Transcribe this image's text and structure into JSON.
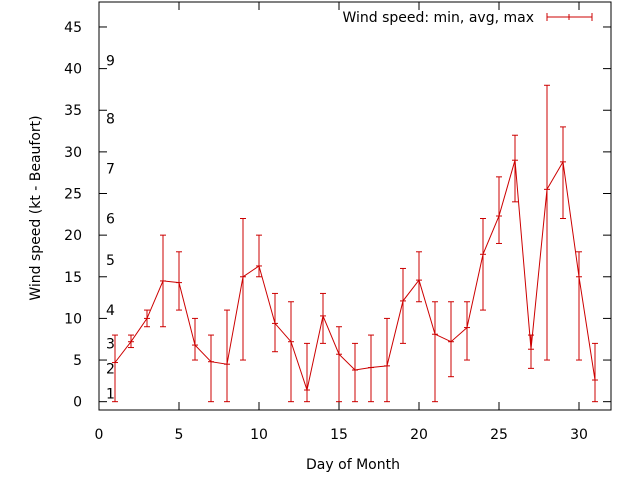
{
  "chart_data": {
    "type": "line",
    "xlabel": "Day of Month",
    "ylabel": "Wind speed (kt - Beaufort)",
    "xlim": [
      0,
      32
    ],
    "ylim": [
      -1,
      48
    ],
    "x_ticks": [
      0,
      5,
      10,
      15,
      20,
      25,
      30
    ],
    "y_ticks": [
      0,
      5,
      10,
      15,
      20,
      25,
      30,
      35,
      40,
      45
    ],
    "grid": false,
    "legend_position": "top-right",
    "beaufort_labels": [
      {
        "label": "1",
        "value": 1
      },
      {
        "label": "2",
        "value": 4
      },
      {
        "label": "3",
        "value": 7
      },
      {
        "label": "4",
        "value": 11
      },
      {
        "label": "5",
        "value": 17
      },
      {
        "label": "6",
        "value": 22
      },
      {
        "label": "7",
        "value": 28
      },
      {
        "label": "8",
        "value": 34
      },
      {
        "label": "9",
        "value": 41
      }
    ],
    "series": [
      {
        "name": "Wind speed: min, avg, max",
        "color": "#cc0000",
        "points": [
          {
            "x": 1,
            "avg": 4.7,
            "min": 0,
            "max": 8
          },
          {
            "x": 2,
            "avg": 7.2,
            "min": 6.5,
            "max": 8
          },
          {
            "x": 3,
            "avg": 10.0,
            "min": 9,
            "max": 11
          },
          {
            "x": 4,
            "avg": 14.5,
            "min": 9,
            "max": 20
          },
          {
            "x": 5,
            "avg": 14.3,
            "min": 11,
            "max": 18
          },
          {
            "x": 6,
            "avg": 6.8,
            "min": 5,
            "max": 10
          },
          {
            "x": 7,
            "avg": 4.8,
            "min": 0,
            "max": 8
          },
          {
            "x": 8,
            "avg": 4.5,
            "min": 0,
            "max": 11
          },
          {
            "x": 9,
            "avg": 15.0,
            "min": 5,
            "max": 22
          },
          {
            "x": 10,
            "avg": 16.3,
            "min": 15,
            "max": 20
          },
          {
            "x": 11,
            "avg": 9.4,
            "min": 6,
            "max": 13
          },
          {
            "x": 12,
            "avg": 7.2,
            "min": 0,
            "max": 12
          },
          {
            "x": 13,
            "avg": 1.4,
            "min": 0,
            "max": 7
          },
          {
            "x": 14,
            "avg": 10.3,
            "min": 7,
            "max": 13
          },
          {
            "x": 15,
            "avg": 5.7,
            "min": 0,
            "max": 9
          },
          {
            "x": 16,
            "avg": 3.8,
            "min": 0,
            "max": 7
          },
          {
            "x": 17,
            "avg": 4.1,
            "min": 0,
            "max": 8
          },
          {
            "x": 18,
            "avg": 4.3,
            "min": 0,
            "max": 10
          },
          {
            "x": 19,
            "avg": 12.1,
            "min": 7,
            "max": 16
          },
          {
            "x": 20,
            "avg": 14.6,
            "min": 12,
            "max": 18
          },
          {
            "x": 21,
            "avg": 8.1,
            "min": 0,
            "max": 12
          },
          {
            "x": 22,
            "avg": 7.2,
            "min": 3,
            "max": 12
          },
          {
            "x": 23,
            "avg": 8.9,
            "min": 5,
            "max": 12
          },
          {
            "x": 24,
            "avg": 17.7,
            "min": 11,
            "max": 22
          },
          {
            "x": 25,
            "avg": 22.3,
            "min": 19,
            "max": 27
          },
          {
            "x": 26,
            "avg": 29.0,
            "min": 24,
            "max": 32
          },
          {
            "x": 27,
            "avg": 6.3,
            "min": 4,
            "max": 8
          },
          {
            "x": 28,
            "avg": 25.5,
            "min": 5,
            "max": 38
          },
          {
            "x": 29,
            "avg": 28.8,
            "min": 22,
            "max": 33
          },
          {
            "x": 30,
            "avg": 15.0,
            "min": 5,
            "max": 18
          },
          {
            "x": 31,
            "avg": 2.6,
            "min": 0,
            "max": 7
          }
        ]
      }
    ]
  }
}
